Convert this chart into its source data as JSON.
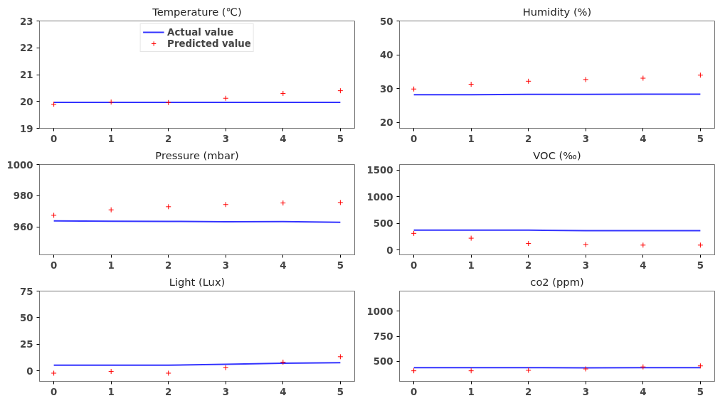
{
  "chart_data": [
    {
      "type": "line",
      "title": "Temperature (℃)",
      "x": [
        0,
        1,
        2,
        3,
        4,
        5
      ],
      "xlim": [
        -0.25,
        5.25
      ],
      "xticks": [
        0,
        1,
        2,
        3,
        4,
        5
      ],
      "ylim": [
        19,
        23
      ],
      "yticks": [
        19,
        20,
        21,
        22,
        23
      ],
      "legend": "top",
      "series": [
        {
          "name": "Actual value",
          "color": "#0000ff",
          "values": [
            19.97,
            19.97,
            19.97,
            19.97,
            19.97,
            19.97
          ]
        },
        {
          "name": "Predicted value",
          "type": "scatter",
          "marker": "cross",
          "color": "#ff0000",
          "values": [
            19.9,
            19.98,
            19.96,
            20.12,
            20.3,
            20.4
          ]
        }
      ]
    },
    {
      "type": "line",
      "title": "Humidity (%)",
      "x": [
        0,
        1,
        2,
        3,
        4,
        5
      ],
      "xlim": [
        -0.25,
        5.25
      ],
      "xticks": [
        0,
        1,
        2,
        3,
        4,
        5
      ],
      "ylim": [
        18.3,
        50
      ],
      "yticks": [
        20,
        30,
        40,
        50
      ],
      "series": [
        {
          "color": "#0000ff",
          "values": [
            28.2,
            28.2,
            28.3,
            28.3,
            28.4,
            28.4
          ]
        },
        {
          "type": "scatter",
          "marker": "cross",
          "color": "#ff0000",
          "values": [
            29.9,
            31.3,
            32.2,
            32.7,
            33.1,
            34.0
          ]
        }
      ]
    },
    {
      "type": "line",
      "title": "Pressure (mbar)",
      "x": [
        0,
        1,
        2,
        3,
        4,
        5
      ],
      "xlim": [
        -0.25,
        5.25
      ],
      "xticks": [
        0,
        1,
        2,
        3,
        4,
        5
      ],
      "ylim": [
        942,
        1000
      ],
      "yticks": [
        960,
        980,
        1000
      ],
      "series": [
        {
          "color": "#0000ff",
          "values": [
            963.8,
            963.6,
            963.5,
            963.2,
            963.3,
            962.9
          ]
        },
        {
          "type": "scatter",
          "marker": "cross",
          "color": "#ff0000",
          "values": [
            967.4,
            970.9,
            972.9,
            974.3,
            975.3,
            975.6
          ]
        }
      ]
    },
    {
      "type": "line",
      "title": "VOC (‰)",
      "x": [
        0,
        1,
        2,
        3,
        4,
        5
      ],
      "xlim": [
        -0.25,
        5.25
      ],
      "xticks": [
        0,
        1,
        2,
        3,
        4,
        5
      ],
      "ylim": [
        -92,
        1600
      ],
      "yticks": [
        0,
        500,
        1000,
        1500
      ],
      "series": [
        {
          "color": "#0000ff",
          "values": [
            370,
            370,
            370,
            360,
            360,
            360
          ]
        },
        {
          "type": "scatter",
          "marker": "cross",
          "color": "#ff0000",
          "values": [
            310,
            220,
            120,
            100,
            90,
            90
          ]
        }
      ]
    },
    {
      "type": "line",
      "title": "Light (Lux)",
      "x": [
        0,
        1,
        2,
        3,
        4,
        5
      ],
      "xlim": [
        -0.25,
        5.25
      ],
      "xticks": [
        0,
        1,
        2,
        3,
        4,
        5
      ],
      "ylim": [
        -10,
        75
      ],
      "yticks": [
        0,
        25,
        50,
        75
      ],
      "series": [
        {
          "color": "#0000ff",
          "values": [
            5.3,
            5.3,
            5.3,
            6,
            7,
            7.5
          ]
        },
        {
          "type": "scatter",
          "marker": "cross",
          "color": "#ff0000",
          "values": [
            -2.3,
            -0.7,
            -2.3,
            2.8,
            8.1,
            13.2
          ]
        }
      ]
    },
    {
      "type": "line",
      "title": "co2 (ppm)",
      "x": [
        0,
        1,
        2,
        3,
        4,
        5
      ],
      "xlim": [
        -0.25,
        5.25
      ],
      "xticks": [
        0,
        1,
        2,
        3,
        4,
        5
      ],
      "ylim": [
        300,
        1200
      ],
      "yticks": [
        500,
        750,
        1000
      ],
      "series": [
        {
          "color": "#0000ff",
          "values": [
            437,
            437,
            436,
            435,
            437,
            436
          ]
        },
        {
          "type": "scatter",
          "marker": "cross",
          "color": "#ff0000",
          "values": [
            405,
            405,
            410,
            424,
            444,
            454
          ]
        }
      ]
    }
  ]
}
